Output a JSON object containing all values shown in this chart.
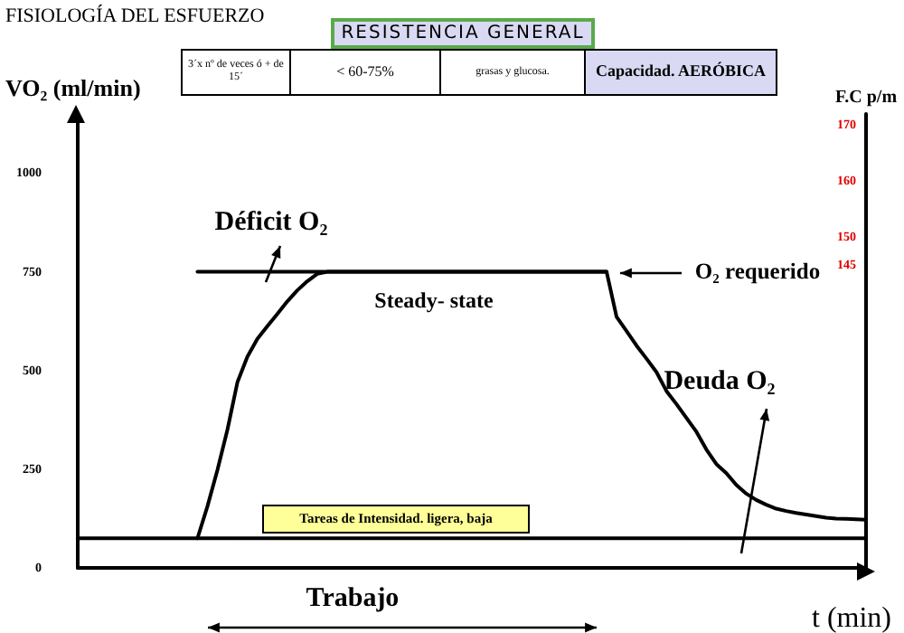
{
  "chart_data": {
    "type": "line",
    "title": "FISIOLOGÍA DEL ESFUERZO",
    "ylabel": "VO₂ (ml/min)",
    "y2label": "F.C p/m",
    "xlabel": "t (min)",
    "categories": [
      null,
      null,
      null,
      null,
      null,
      null,
      null,
      null,
      null,
      null,
      null,
      null,
      null,
      null,
      null,
      null,
      null,
      null,
      null,
      null,
      null,
      null,
      null,
      null,
      null,
      null,
      null,
      null,
      null,
      null,
      null,
      null,
      null,
      null,
      null,
      null,
      null,
      null,
      null,
      null,
      null,
      null,
      null,
      null,
      null,
      null,
      null,
      null,
      null,
      null,
      null,
      null,
      null,
      null,
      null,
      null,
      null,
      null,
      null,
      null,
      null,
      null,
      null,
      null,
      null,
      null,
      null,
      null,
      null,
      null,
      null,
      null,
      null,
      null,
      null,
      null,
      null,
      null,
      null,
      null
    ],
    "series": [
      {
        "color": "#000000",
        "values": [
          75,
          75,
          75,
          75,
          75,
          75,
          75,
          75,
          75,
          75,
          75,
          75,
          75,
          75,
          75,
          75,
          75,
          75,
          75,
          75,
          75,
          75,
          75,
          75,
          75,
          75,
          75,
          75,
          75,
          75,
          75,
          75,
          75,
          75,
          75,
          75,
          75,
          75,
          75,
          75,
          75,
          75,
          75,
          75,
          75,
          75,
          75,
          75,
          75,
          75,
          75,
          75,
          75,
          75,
          75,
          75,
          75,
          75,
          75,
          75,
          75,
          75,
          75,
          75,
          75,
          75,
          75,
          75,
          75,
          75,
          75,
          75,
          75,
          75,
          75,
          75,
          75,
          75,
          75,
          75
        ]
      },
      {
        "color": "#000000",
        "values": [
          null,
          null,
          null,
          null,
          null,
          null,
          null,
          null,
          null,
          null,
          null,
          null,
          75,
          156,
          248,
          350,
          470,
          535,
          580,
          612,
          643,
          675,
          703,
          726,
          745,
          750,
          750,
          750,
          750,
          750,
          750,
          750,
          750,
          750,
          750,
          750,
          750,
          750,
          750,
          750,
          750,
          750,
          750,
          750,
          750,
          750,
          750,
          750,
          750,
          750,
          750,
          750,
          750,
          750,
          636,
          600,
          563,
          530,
          496,
          448,
          415,
          380,
          345,
          300,
          263,
          240,
          210,
          188,
          172,
          160,
          150,
          144,
          139,
          135,
          131,
          127,
          125,
          124,
          123,
          122
        ]
      },
      {
        "color": "#000000",
        "values": [
          null,
          null,
          null,
          null,
          null,
          null,
          null,
          null,
          null,
          null,
          null,
          null,
          750,
          750,
          750,
          750,
          750,
          750,
          750,
          750,
          750,
          750,
          750,
          750,
          750,
          750,
          750,
          750,
          750,
          750,
          750,
          750,
          750,
          750,
          750,
          750,
          750,
          750,
          750,
          750,
          750,
          750,
          750,
          750,
          750,
          750,
          750,
          750,
          750,
          750,
          750,
          750,
          750,
          750,
          null,
          null,
          null,
          null,
          null,
          null,
          null,
          null,
          null,
          null,
          null,
          null,
          null,
          null,
          null,
          null,
          null,
          null,
          null,
          null,
          null,
          null,
          null,
          null,
          null,
          null
        ]
      }
    ],
    "ylim": [
      0,
      1150
    ],
    "yticks": [
      0,
      250,
      500,
      750,
      1000
    ],
    "y2lim": [
      91,
      172
    ],
    "y2ticks": [
      145,
      150,
      160,
      170
    ],
    "grid": false,
    "marker": "none",
    "line_style": "solid",
    "annotations": [
      "RESISTENCIA GENERAL",
      "3´x nº de veces ó + de 15´",
      "< 60-75%",
      "grasas y glucosa.",
      "Capacidad. AERÓBICA",
      "Déficit O₂",
      "Steady- state",
      "Deuda O₂",
      "Tareas de Intensidad. ligera, baja",
      "Trabajo",
      "O₂ requerido"
    ]
  }
}
